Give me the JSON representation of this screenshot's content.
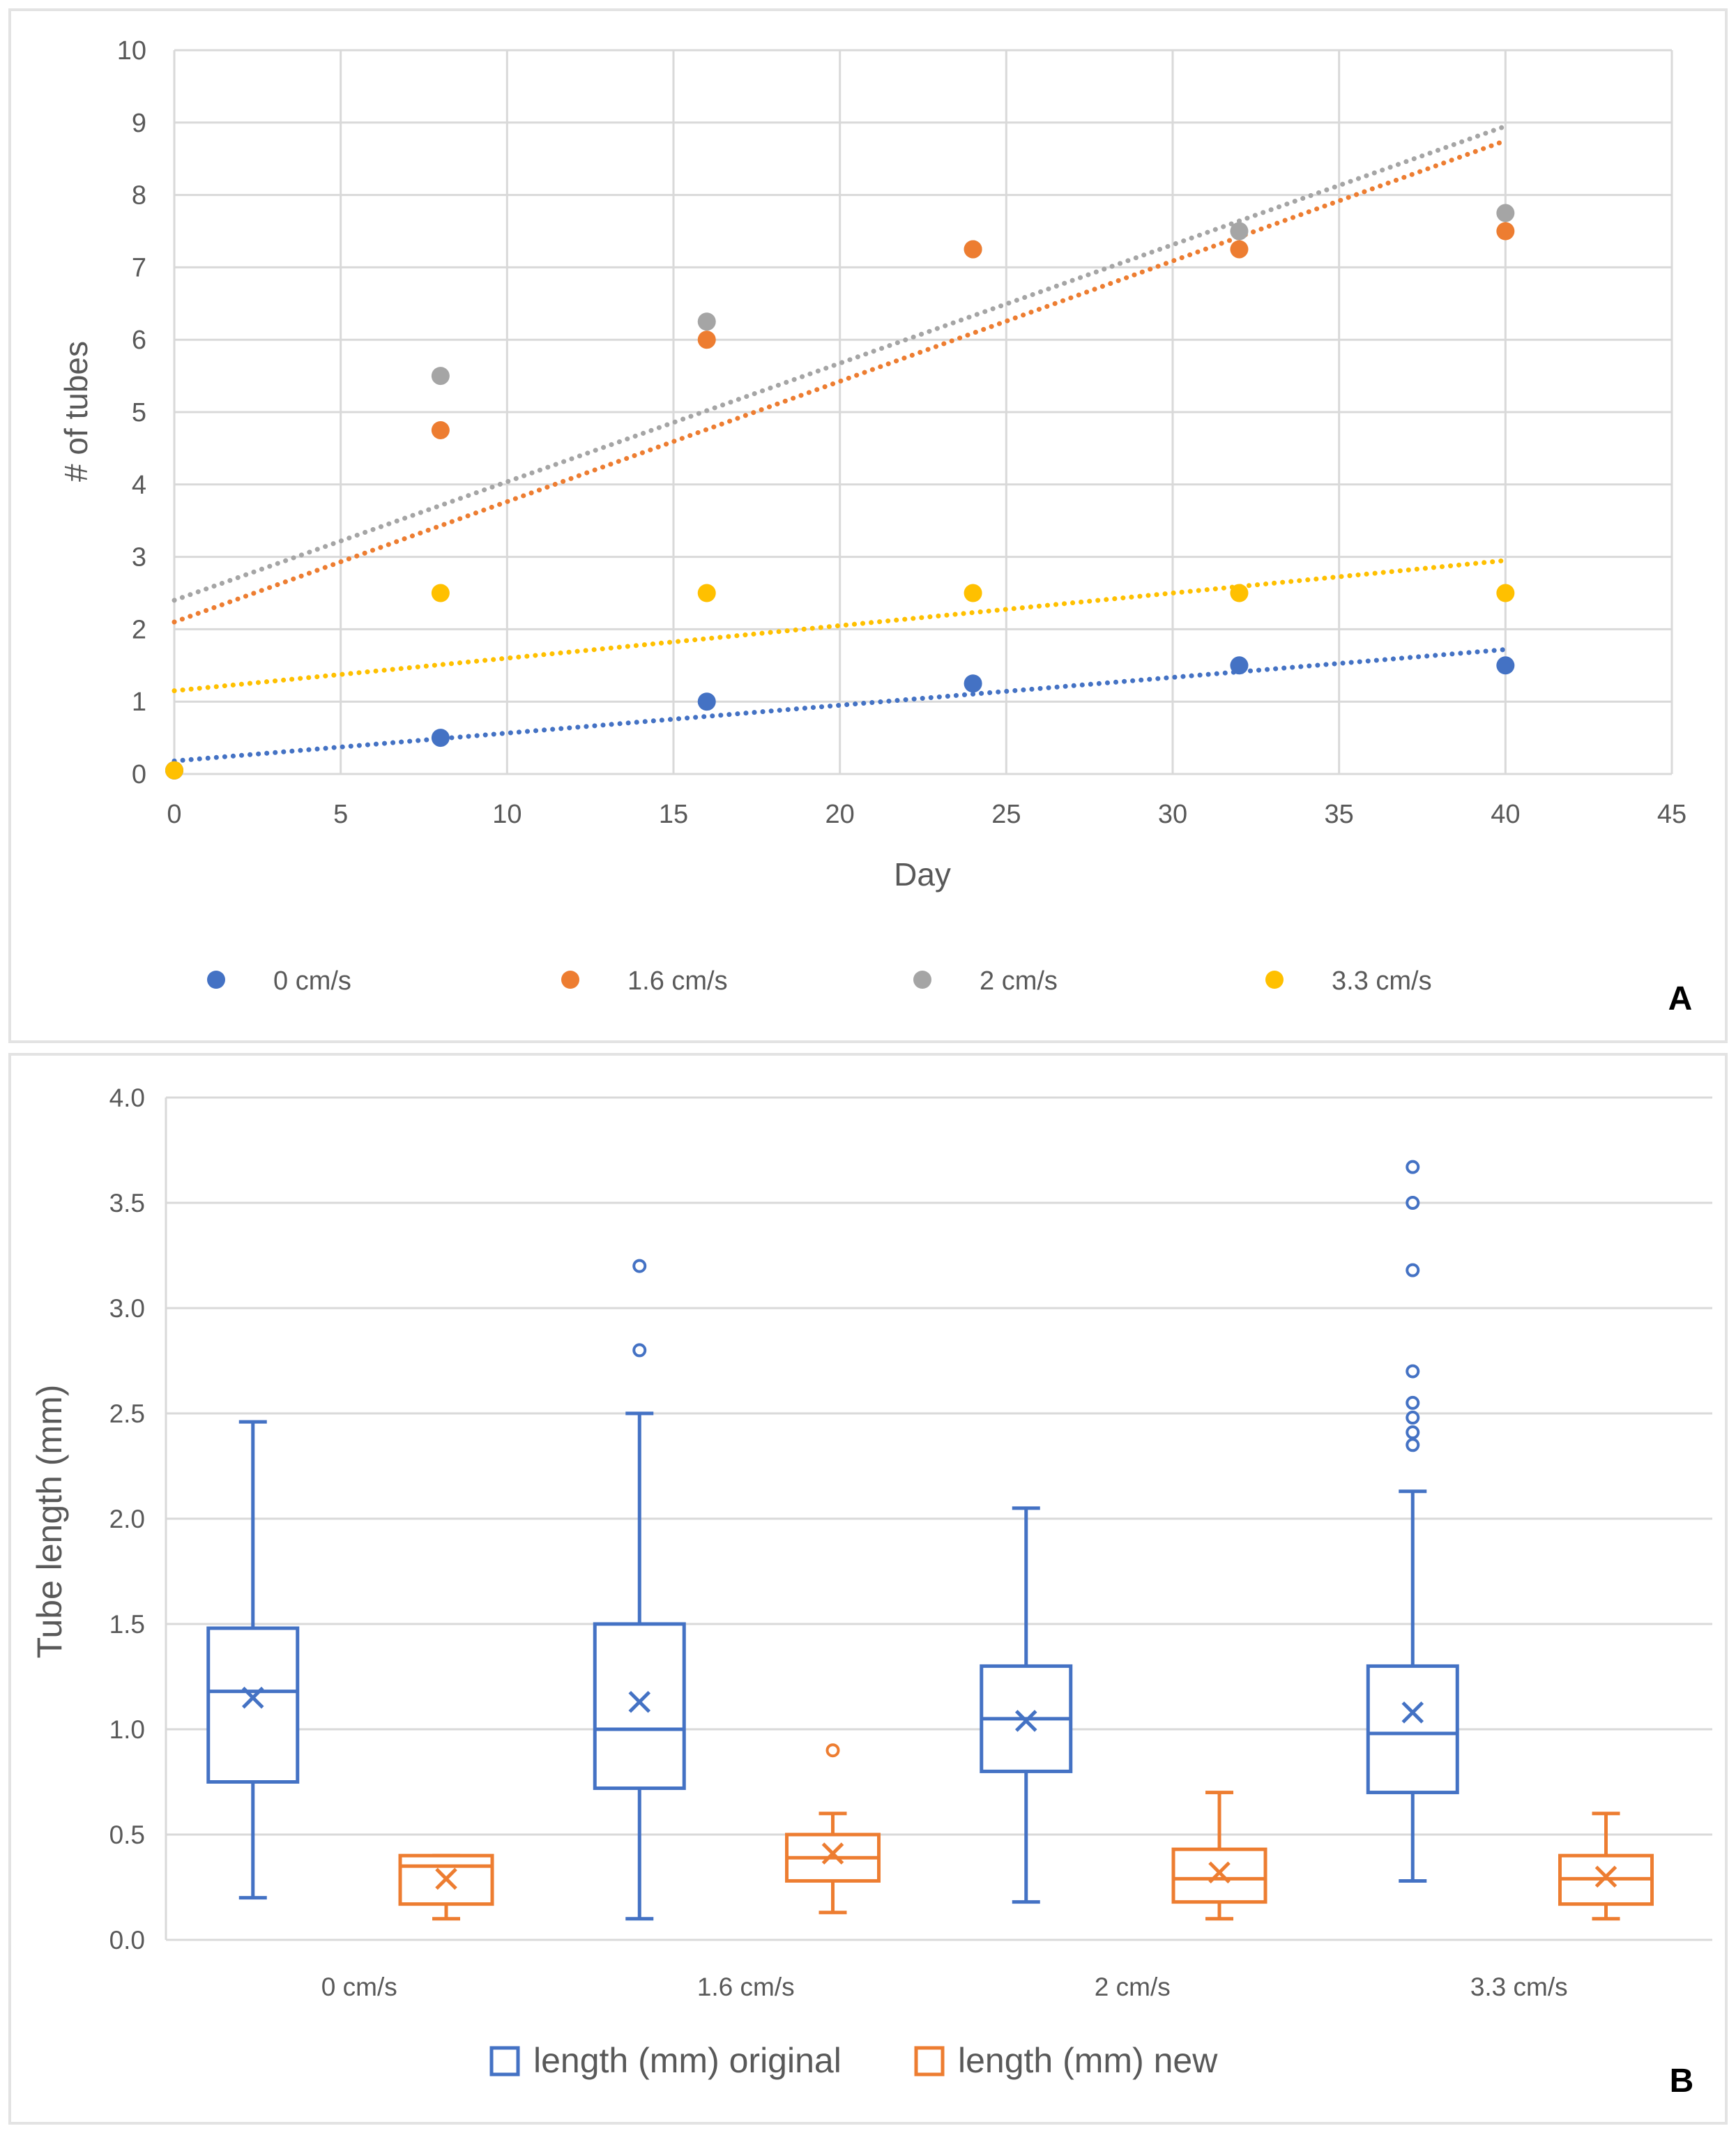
{
  "colors": {
    "blue": "#4472C4",
    "orange": "#ED7D31",
    "gray": "#A5A5A5",
    "yellow": "#FFC000",
    "grid": "#D9D9D9",
    "text": "#595959",
    "panel_border": "#E3E3E3"
  },
  "chart_data": [
    {
      "panel_label": "A",
      "type": "scatter",
      "title": "",
      "xlabel": "Day",
      "ylabel": "# of tubes",
      "xlim": [
        0,
        45
      ],
      "ylim": [
        0,
        10
      ],
      "x_ticks": [
        0,
        5,
        10,
        15,
        20,
        25,
        30,
        35,
        40,
        45
      ],
      "y_ticks": [
        0,
        1,
        2,
        3,
        4,
        5,
        6,
        7,
        8,
        9,
        10
      ],
      "grid": true,
      "legend_position": "bottom",
      "series": [
        {
          "name": "0 cm/s",
          "color": "#4472C4",
          "x": [
            0,
            8,
            16,
            24,
            32,
            40
          ],
          "y": [
            0.05,
            0.5,
            1.0,
            1.25,
            1.5,
            1.5
          ],
          "trendline": {
            "x": [
              0,
              40
            ],
            "y": [
              0.18,
              1.72
            ]
          }
        },
        {
          "name": "1.6 cm/s",
          "color": "#ED7D31",
          "x": [
            0,
            8,
            16,
            24,
            32,
            40
          ],
          "y": [
            0.05,
            4.75,
            6.0,
            7.25,
            7.25,
            7.5
          ],
          "trendline": {
            "x": [
              0,
              40
            ],
            "y": [
              2.1,
              8.75
            ]
          }
        },
        {
          "name": "2 cm/s",
          "color": "#A5A5A5",
          "x": [
            0,
            8,
            16,
            24,
            32,
            40
          ],
          "y": [
            0.05,
            5.5,
            6.25,
            7.25,
            7.5,
            7.75
          ],
          "trendline": {
            "x": [
              0,
              40
            ],
            "y": [
              2.4,
              8.95
            ]
          }
        },
        {
          "name": "3.3 cm/s",
          "color": "#FFC000",
          "x": [
            0,
            8,
            16,
            24,
            32,
            40
          ],
          "y": [
            0.05,
            2.5,
            2.5,
            2.5,
            2.5,
            2.5
          ],
          "trendline": {
            "x": [
              0,
              40
            ],
            "y": [
              1.15,
              2.95
            ]
          }
        }
      ]
    },
    {
      "panel_label": "B",
      "type": "box",
      "title": "",
      "xlabel": "",
      "ylabel": "Tube length (mm)",
      "ylim": [
        0,
        4
      ],
      "y_ticks": [
        0.0,
        0.5,
        1.0,
        1.5,
        2.0,
        2.5,
        3.0,
        3.5,
        4.0
      ],
      "categories": [
        "0 cm/s",
        "1.6 cm/s",
        "2 cm/s",
        "3.3 cm/s"
      ],
      "grid": true,
      "legend_position": "bottom",
      "series": [
        {
          "name": "length (mm) original",
          "color": "#4472C4",
          "boxes": [
            {
              "min": 0.2,
              "q1": 0.75,
              "median": 1.18,
              "q3": 1.48,
              "max": 2.46,
              "mean": 1.15,
              "outliers": []
            },
            {
              "min": 0.1,
              "q1": 0.72,
              "median": 1.0,
              "q3": 1.5,
              "max": 2.5,
              "mean": 1.13,
              "outliers": [
                2.8,
                3.2
              ]
            },
            {
              "min": 0.18,
              "q1": 0.8,
              "median": 1.05,
              "q3": 1.3,
              "max": 2.05,
              "mean": 1.04,
              "outliers": []
            },
            {
              "min": 0.28,
              "q1": 0.7,
              "median": 0.98,
              "q3": 1.3,
              "max": 2.13,
              "mean": 1.08,
              "outliers": [
                2.35,
                2.41,
                2.48,
                2.55,
                2.7,
                3.18,
                3.5,
                3.67
              ]
            }
          ]
        },
        {
          "name": "length (mm) new",
          "color": "#ED7D31",
          "boxes": [
            {
              "min": 0.1,
              "q1": 0.17,
              "median": 0.35,
              "q3": 0.4,
              "max": 0.4,
              "mean": 0.29,
              "outliers": []
            },
            {
              "min": 0.13,
              "q1": 0.28,
              "median": 0.39,
              "q3": 0.5,
              "max": 0.6,
              "mean": 0.41,
              "outliers": [
                0.9
              ]
            },
            {
              "min": 0.1,
              "q1": 0.18,
              "median": 0.29,
              "q3": 0.43,
              "max": 0.7,
              "mean": 0.32,
              "outliers": []
            },
            {
              "min": 0.1,
              "q1": 0.17,
              "median": 0.29,
              "q3": 0.4,
              "max": 0.6,
              "mean": 0.3,
              "outliers": []
            }
          ]
        }
      ]
    }
  ]
}
